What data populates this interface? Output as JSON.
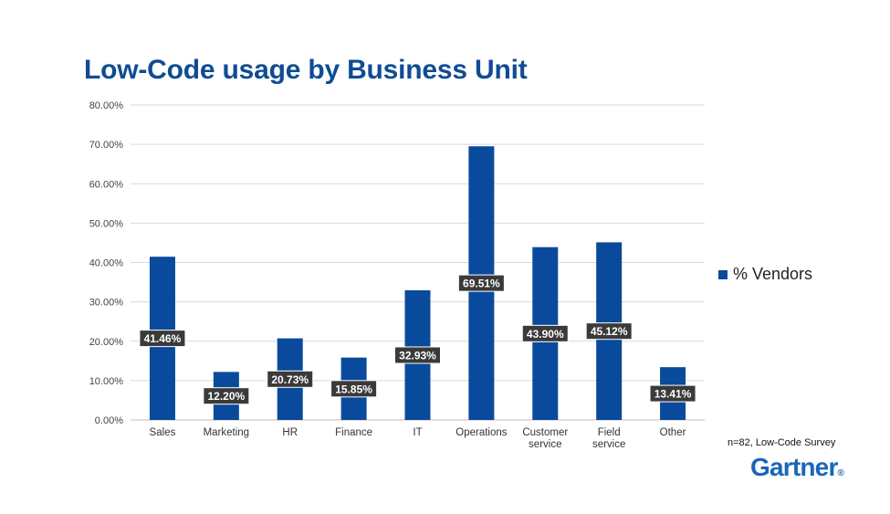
{
  "header": {
    "title": "Low-Code usage by Business Unit"
  },
  "footer": {
    "note": "n=82, Low-Code Survey",
    "logo_text": "Gartner",
    "logo_mark": "®"
  },
  "colors": {
    "bar": "#0a4a9c",
    "title": "#0f4c93",
    "label_bg": "#3a3a3a",
    "grid": "#d9d9d9"
  },
  "chart_data": {
    "type": "bar",
    "title": "Low-Code usage by Business Unit",
    "xlabel": "",
    "ylabel": "",
    "ylim": [
      0,
      80
    ],
    "yticks": [
      "0.00%",
      "10.00%",
      "20.00%",
      "30.00%",
      "40.00%",
      "50.00%",
      "60.00%",
      "70.00%",
      "80.00%"
    ],
    "grid": true,
    "legend_position": "right",
    "categories": [
      "Sales",
      "Marketing",
      "HR",
      "Finance",
      "IT",
      "Operations",
      "Customer service",
      "Field service",
      "Other"
    ],
    "series": [
      {
        "name": "% Vendors",
        "values": [
          41.46,
          12.2,
          20.73,
          15.85,
          32.93,
          69.51,
          43.9,
          45.12,
          13.41
        ],
        "labels": [
          "41.46%",
          "12.20%",
          "20.73%",
          "15.85%",
          "32.93%",
          "69.51%",
          "43.90%",
          "45.12%",
          "13.41%"
        ]
      }
    ]
  }
}
